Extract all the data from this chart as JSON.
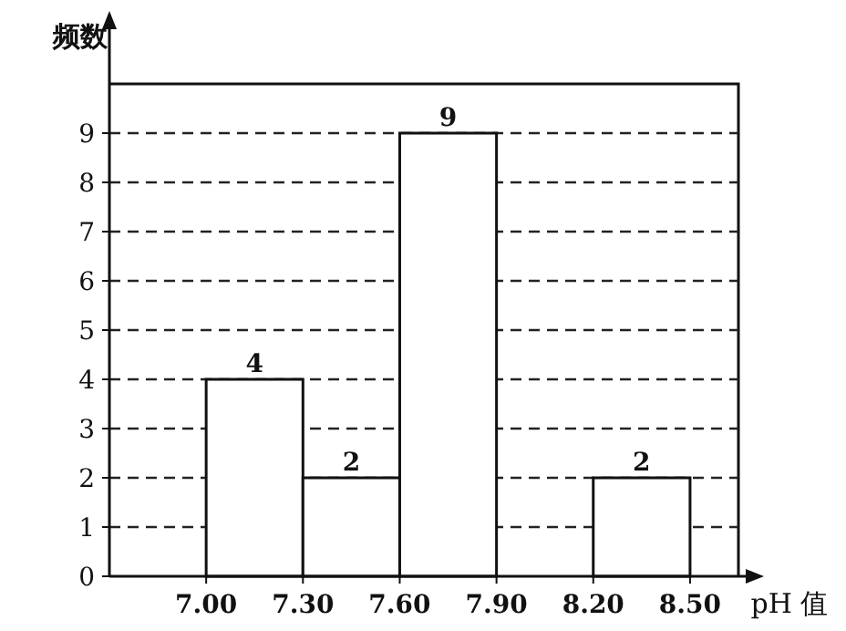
{
  "chart_data": {
    "type": "histogram",
    "xlabel": "pH 值",
    "ylabel": "频数",
    "bins": [
      7.0,
      7.3,
      7.6,
      7.9,
      8.2,
      8.5
    ],
    "values": [
      4,
      2,
      9,
      0,
      2
    ],
    "value_labels": [
      "4",
      "2",
      "9",
      null,
      "2"
    ],
    "color": "#ffffff",
    "xlim": [
      6.7,
      8.65
    ],
    "ylim": [
      0,
      10
    ],
    "xticks": [
      {
        "value": 7.0,
        "label": "7.00"
      },
      {
        "value": 7.3,
        "label": "7.30"
      },
      {
        "value": 7.6,
        "label": "7.60"
      },
      {
        "value": 7.9,
        "label": "7.90"
      },
      {
        "value": 8.2,
        "label": "8.20"
      },
      {
        "value": 8.5,
        "label": "8.50"
      }
    ],
    "yticks": [
      0,
      1,
      2,
      3,
      4,
      5,
      6,
      7,
      8,
      9
    ],
    "grid": "y"
  }
}
